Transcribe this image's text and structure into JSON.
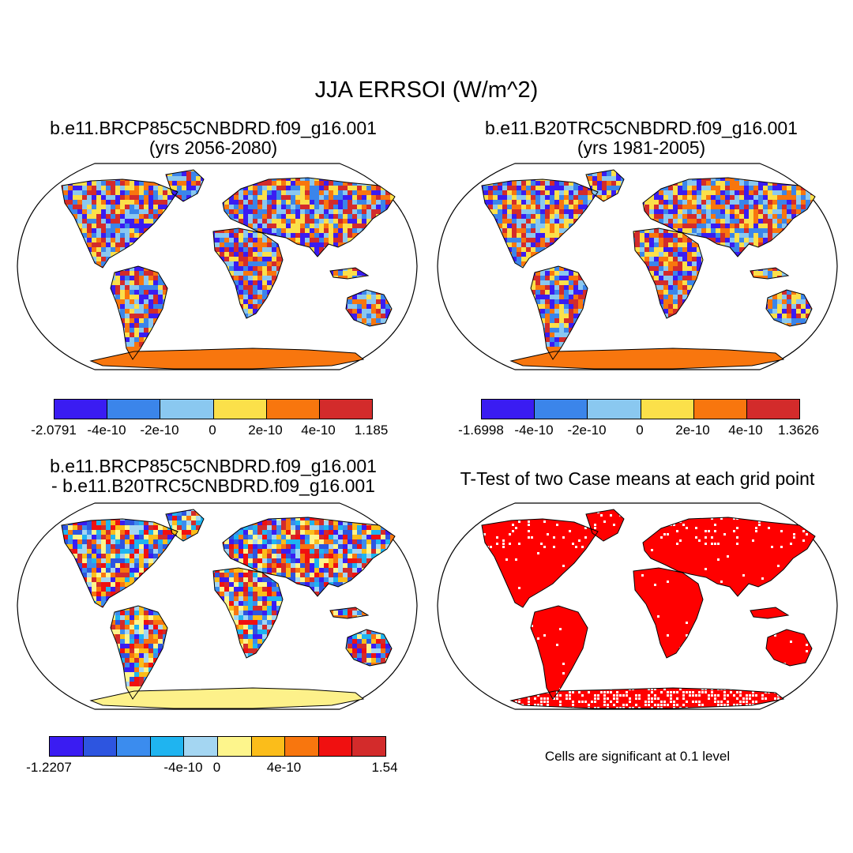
{
  "figure": {
    "title": "JJA ERRSOI (W/m^2)",
    "panels": [
      {
        "title_line1": "b.e11.BRCP85C5CNBDRD.f09_g16.001",
        "title_line2": "(yrs 2056-2080)",
        "colorbar": {
          "colors": [
            "#3a1cf2",
            "#3b85ea",
            "#8ac8f0",
            "#fbe04a",
            "#f8760e",
            "#d32b2b"
          ],
          "labels": [
            "-2.0791",
            "-4e-10",
            "-2e-10",
            "0",
            "2e-10",
            "4e-10",
            "1.185"
          ]
        },
        "antarctica_color": "#f8760e"
      },
      {
        "title_line1": "b.e11.B20TRC5CNBDRD.f09_g16.001",
        "title_line2": "(yrs 1981-2005)",
        "colorbar": {
          "colors": [
            "#3a1cf2",
            "#3b85ea",
            "#8ac8f0",
            "#fbe04a",
            "#f8760e",
            "#d32b2b"
          ],
          "labels": [
            "-1.6998",
            "-4e-10",
            "-2e-10",
            "0",
            "2e-10",
            "4e-10",
            "1.3626"
          ]
        },
        "antarctica_color": "#f8760e"
      },
      {
        "title_line1": "b.e11.BRCP85C5CNBDRD.f09_g16.001",
        "title_line2": "- b.e11.B20TRC5CNBDRD.f09_g16.001",
        "colorbar": {
          "colors": [
            "#3a1cf2",
            "#2d55e0",
            "#3b8cee",
            "#1fb4f0",
            "#a4d6f2",
            "#fdf58c",
            "#fbbd1a",
            "#f8760e",
            "#f01010",
            "#d32b2b"
          ],
          "labels": [
            "-1.2207",
            "-4e-10",
            "0",
            "4e-10",
            "1.54"
          ]
        },
        "antarctica_color": "#fdf18a"
      },
      {
        "title_line1": "T-Test of two Case means at each grid point",
        "note": "Cells are significant at 0.1 level",
        "land_color": "#ff0000"
      }
    ]
  }
}
